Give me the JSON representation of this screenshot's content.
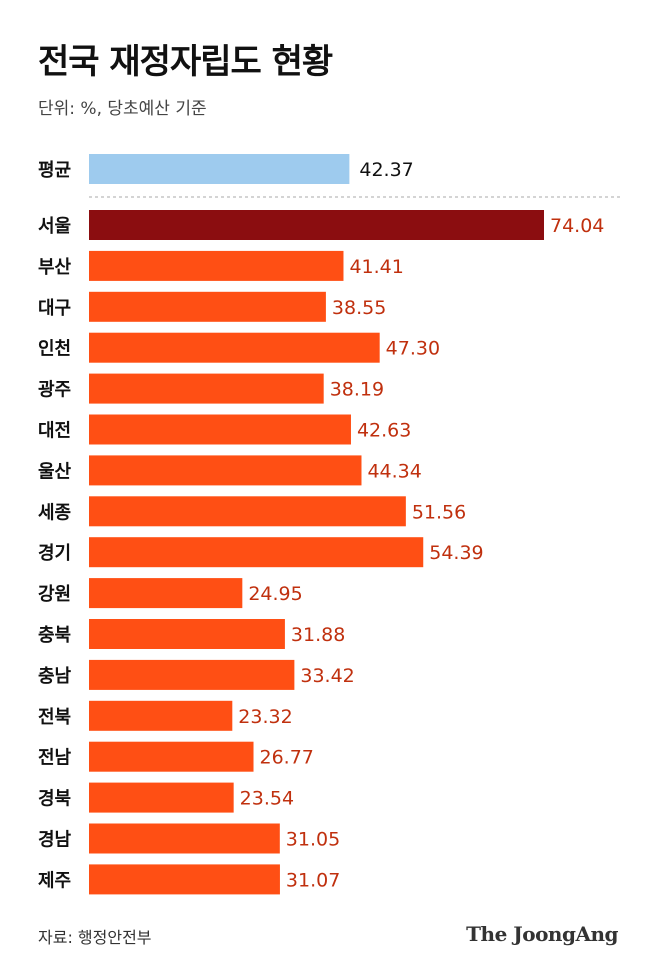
{
  "header": {
    "title": "전국 재정자립도 현황",
    "subtitle": "단위: %, 당초예산 기준"
  },
  "footer": {
    "source": "자료: 행정안전부",
    "logo": "The JoongAng"
  },
  "colors": {
    "average_bar": "#9ecbee",
    "highlight_bar": "#8b0d10",
    "bar": "#ff4f14",
    "value_label": "#c0300e",
    "average_label": "#111111",
    "category_label": "#111111",
    "divider": "#aaaaaa"
  },
  "chart_data": {
    "type": "bar",
    "orientation": "horizontal",
    "unit": "%",
    "average": {
      "category": "평균",
      "value": 42.37
    },
    "categories": [
      "서울",
      "부산",
      "대구",
      "인천",
      "광주",
      "대전",
      "울산",
      "세종",
      "경기",
      "강원",
      "충북",
      "충남",
      "전북",
      "전남",
      "경북",
      "경남",
      "제주"
    ],
    "values": [
      74.04,
      41.41,
      38.55,
      47.3,
      38.19,
      42.63,
      44.34,
      51.56,
      54.39,
      24.95,
      31.88,
      33.42,
      23.32,
      26.77,
      23.54,
      31.05,
      31.07
    ],
    "value_labels": [
      "74.04",
      "41.41",
      "38.55",
      "47.30",
      "38.19",
      "42.63",
      "44.34",
      "51.56",
      "54.39",
      "24.95",
      "31.88",
      "33.42",
      "23.32",
      "26.77",
      "23.54",
      "31.05",
      "31.07"
    ],
    "average_label": "42.37",
    "highlight": "서울",
    "xlim": [
      0,
      74.04
    ],
    "grid": false,
    "legend": "none"
  }
}
